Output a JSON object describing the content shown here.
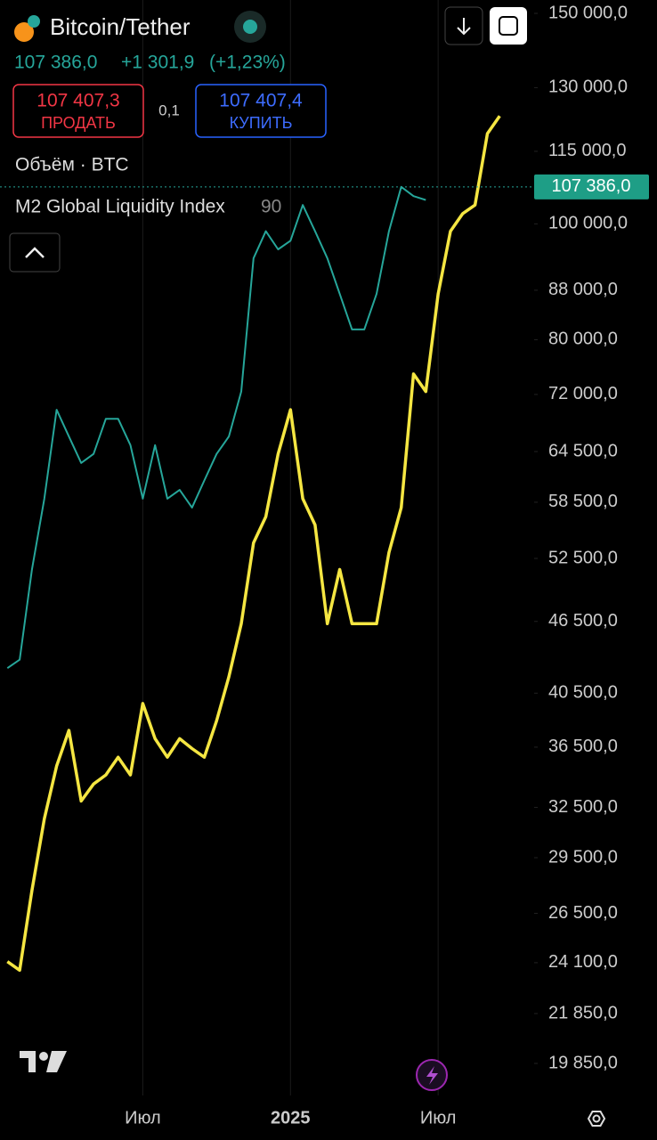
{
  "header": {
    "change": "+1 301,9",
    "change_pct": "(+1,23%)",
    "sell_price": "107 407,3",
    "sell_label": "ПРОДАТЬ",
    "spread": "0,1",
    "buy_price": "107 407,4",
    "buy_label": "КУПИТЬ",
    "volume_label": "Объём · BTC",
    "indicator_param": "90"
  },
  "chart_data": {
    "type": "line",
    "title": "Bitcoin/Tether",
    "yscale": "log",
    "grid": true,
    "last_price": {
      "value": 107386,
      "label": "107 386,0"
    },
    "x": [
      0.5,
      1,
      1.5,
      2,
      2.5,
      3,
      3.5,
      4,
      4.5,
      5,
      5.5,
      6,
      6.5,
      7,
      7.5,
      8,
      8.5,
      9,
      9.5,
      10,
      10.5,
      11,
      11.5,
      12,
      12.5,
      13,
      13.5,
      14,
      14.5,
      15,
      15.5,
      16,
      16.5,
      17,
      17.5,
      18,
      18.5,
      19,
      19.5,
      20,
      20.5
    ],
    "series": [
      {
        "color": "#26a69a",
        "values": [
          42500,
          43200,
          51400,
          58900,
          69900,
          66400,
          63100,
          64200,
          68700,
          68700,
          65300,
          58900,
          65300,
          58900,
          59900,
          57900,
          61000,
          64200,
          66400,
          72400,
          93600,
          98600,
          95200,
          96800,
          103700,
          98600,
          93600,
          87400,
          81600,
          81600,
          87400,
          98600,
          107400,
          105500,
          104700,
          null,
          null,
          null,
          null,
          null,
          null
        ]
      },
      {
        "name": "M2 Global Liquidity Index",
        "color": "#f5e642",
        "values": [
          24150,
          23750,
          27700,
          31800,
          35200,
          37700,
          32900,
          34000,
          34600,
          35800,
          34600,
          39700,
          37100,
          35800,
          37100,
          36400,
          35800,
          38400,
          41800,
          46300,
          54100,
          56900,
          64200,
          69900,
          58900,
          56000,
          46300,
          51400,
          46300,
          46300,
          46300,
          53100,
          57900,
          74900,
          72400,
          87400,
          98600,
          102000,
          103700,
          119000,
          123100
        ]
      }
    ],
    "xlim": [
      0.2,
      21.9
    ],
    "xticks": [
      {
        "value": 6,
        "label": "Июл"
      },
      {
        "value": 12,
        "label": "2025"
      },
      {
        "value": 18,
        "label": "Июл"
      }
    ],
    "ylim": [
      19850,
      150000
    ],
    "yticks": [
      {
        "value": 150000,
        "label": "150 000,0"
      },
      {
        "value": 130000,
        "label": "130 000,0"
      },
      {
        "value": 115000,
        "label": "115 000,0"
      },
      {
        "value": 100000,
        "label": "100 000,0"
      },
      {
        "value": 88000,
        "label": "88 000,0"
      },
      {
        "value": 80000,
        "label": "80 000,0"
      },
      {
        "value": 72000,
        "label": "72 000,0"
      },
      {
        "value": 64500,
        "label": "64 500,0"
      },
      {
        "value": 58500,
        "label": "58 500,0"
      },
      {
        "value": 52500,
        "label": "52 500,0"
      },
      {
        "value": 46500,
        "label": "46 500,0"
      },
      {
        "value": 40500,
        "label": "40 500,0"
      },
      {
        "value": 36500,
        "label": "36 500,0"
      },
      {
        "value": 32500,
        "label": "32 500,0"
      },
      {
        "value": 29500,
        "label": "29 500,0"
      },
      {
        "value": 26500,
        "label": "26 500,0"
      },
      {
        "value": 24100,
        "label": "24 100,0"
      },
      {
        "value": 21850,
        "label": "21 850,0"
      },
      {
        "value": 19850,
        "label": "19 850,0"
      }
    ]
  }
}
